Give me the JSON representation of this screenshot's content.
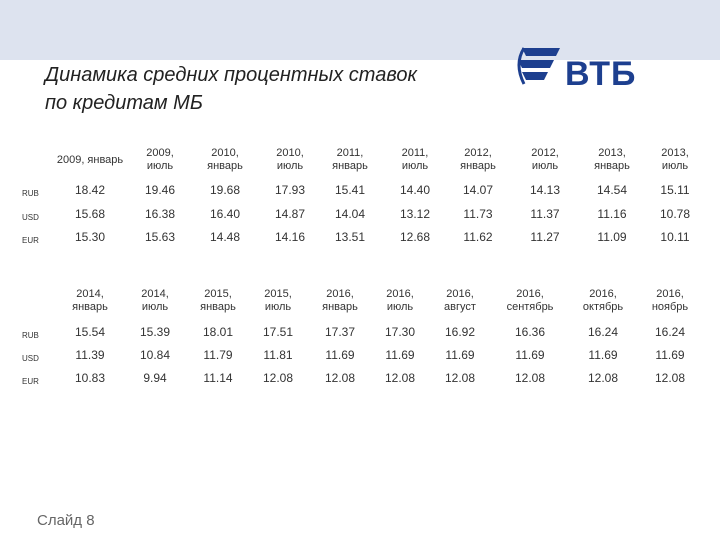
{
  "header": {
    "title_lines": [
      "Динамика средних процентных ставок",
      "по кредитам МБ"
    ],
    "logo": "ВТБ"
  },
  "tables": [
    {
      "columns": [
        "2009, январь",
        "2009, июль",
        "2010, январь",
        "2010, июль",
        "2011, январь",
        "2011, июль",
        "2012, январь",
        "2012, июль",
        "2013, январь",
        "2013, июль"
      ],
      "rows": [
        {
          "label": "RUB",
          "values": [
            "18.42",
            "19.46",
            "19.68",
            "17.93",
            "15.41",
            "14.40",
            "14.07",
            "14.13",
            "14.54",
            "15.11"
          ]
        },
        {
          "label": "USD",
          "values": [
            "15.68",
            "16.38",
            "16.40",
            "14.87",
            "14.04",
            "13.12",
            "11.73",
            "11.37",
            "11.16",
            "10.78"
          ]
        },
        {
          "label": "EUR",
          "values": [
            "15.30",
            "15.63",
            "14.48",
            "14.16",
            "13.51",
            "12.68",
            "11.62",
            "11.27",
            "11.09",
            "10.11"
          ]
        }
      ]
    },
    {
      "columns": [
        "2014, январь",
        "2014, июль",
        "2015, январь",
        "2015, июль",
        "2016, январь",
        "2016, июль",
        "2016, август",
        "2016, сентябрь",
        "2016, октябрь",
        "2016, ноябрь"
      ],
      "rows": [
        {
          "label": "RUB",
          "values": [
            "15.54",
            "15.39",
            "18.01",
            "17.51",
            "17.37",
            "17.30",
            "16.92",
            "16.36",
            "16.24",
            "16.24"
          ]
        },
        {
          "label": "USD",
          "values": [
            "11.39",
            "10.84",
            "11.79",
            "11.81",
            "11.69",
            "11.69",
            "11.69",
            "11.69",
            "11.69",
            "11.69"
          ]
        },
        {
          "label": "EUR",
          "values": [
            "10.83",
            "9.94",
            "11.14",
            "12.08",
            "12.08",
            "12.08",
            "12.08",
            "12.08",
            "12.08",
            "12.08"
          ]
        }
      ]
    }
  ],
  "footer": {
    "slide": "Слайд 8"
  }
}
